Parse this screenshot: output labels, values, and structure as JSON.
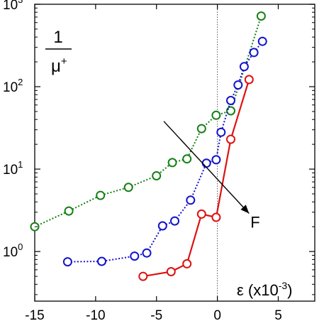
{
  "chart_data": {
    "type": "line",
    "xlim": [
      -15,
      8
    ],
    "y_scale": "log",
    "ylim": [
      0.25,
      1000
    ],
    "grid": false,
    "x_ticks": [
      -15,
      -10,
      -5,
      0,
      5
    ],
    "x_tick_labels": [
      "-15",
      "-10",
      "-5",
      "0",
      "5"
    ],
    "y_ticks": [
      {
        "value": 1,
        "base": "10",
        "exp": "0"
      },
      {
        "value": 10,
        "base": "10",
        "exp": "1"
      },
      {
        "value": 100,
        "base": "10",
        "exp": "2"
      },
      {
        "value": 1000,
        "base": "10",
        "exp": "3"
      }
    ],
    "ylabel": {
      "numerator": "1",
      "denominator": "μ",
      "denominator_sup": "+"
    },
    "xlabel": {
      "text": "ε (x10",
      "sup": "-3",
      "close": ")"
    },
    "reference_line": {
      "x": 0,
      "style": "dotted"
    },
    "series": [
      {
        "color": "#138013",
        "line_style": "dotted",
        "x": [
          -15,
          -12.2,
          -9.6,
          -7.3,
          -5.0,
          -3.7,
          -2.5,
          -1.3,
          -0.1,
          1.1,
          3.6
        ],
        "y": [
          2.0,
          3.1,
          4.8,
          6.0,
          8.3,
          12.0,
          13.3,
          31.0,
          45.0,
          51.0,
          720.0
        ]
      },
      {
        "color": "#1212cc",
        "line_style": "dotted",
        "x": [
          -12.3,
          -9.5,
          -6.8,
          -5.8,
          -4.5,
          -3.5,
          -2.2,
          -0.9,
          -0.1,
          0.3,
          1.1,
          1.7,
          2.2,
          3.0,
          3.7
        ],
        "y": [
          0.75,
          0.76,
          0.88,
          0.96,
          2.05,
          2.35,
          4.2,
          11.8,
          13.0,
          28.0,
          68.0,
          105.0,
          175.0,
          260.0,
          355.0
        ]
      },
      {
        "color": "#dd1111",
        "line_style": "solid",
        "x": [
          -6.1,
          -3.8,
          -2.5,
          -1.3,
          -0.1,
          1.1,
          2.6
        ],
        "y": [
          0.5,
          0.57,
          0.71,
          2.85,
          2.6,
          23.0,
          122.0
        ]
      }
    ],
    "annotations": [
      {
        "text": "F",
        "type": "arrow",
        "from": [
          -4.4,
          38.0
        ],
        "to": [
          2.6,
          2.9
        ]
      }
    ]
  }
}
